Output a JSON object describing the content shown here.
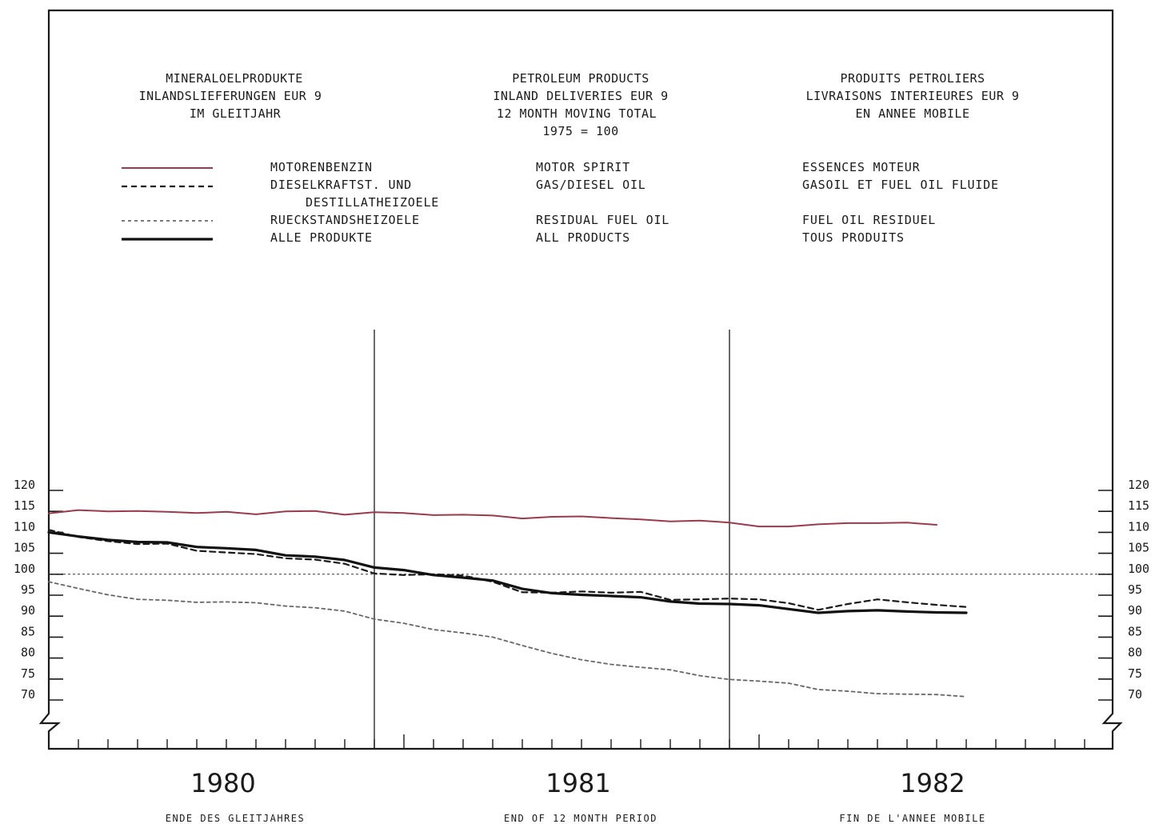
{
  "colors": {
    "frame": "#1a1a1a",
    "motor_spirit": "#9b3a4c",
    "gas_diesel": "#1a1a1a",
    "residual": "#666666",
    "all_products": "#111111",
    "reference": "#333333"
  },
  "headers": [
    [
      "MINERALOELPRODUKTE",
      "INLANDSLIEFERUNGEN  EUR 9",
      "IM GLEITJAHR"
    ],
    [
      "PETROLEUM PRODUCTS",
      "INLAND DELIVERIES  EUR 9",
      "12 MONTH MOVING TOTAL",
      "1975 = 100"
    ],
    [
      "PRODUITS PETROLIERS",
      "LIVRAISONS INTERIEURES  EUR 9",
      "EN ANNEE MOBILE"
    ]
  ],
  "legend": [
    {
      "de": "MOTORENBENZIN",
      "en": "MOTOR SPIRIT",
      "fr": "ESSENCES MOTEUR"
    },
    {
      "de": "DIESELKRAFTST. UND",
      "de2": "DESTILLATHEIZOELE",
      "en": "GAS/DIESEL OIL",
      "fr": "GASOIL ET FUEL OIL FLUIDE"
    },
    {
      "de": "RUECKSTANDSHEIZOELE",
      "en": "RESIDUAL FUEL OIL",
      "fr": "FUEL OIL RESIDUEL"
    },
    {
      "de": "ALLE PRODUKTE",
      "en": "ALL PRODUCTS",
      "fr": "TOUS PRODUITS"
    }
  ],
  "footer": {
    "years": [
      "1980",
      "1981",
      "1982"
    ],
    "labels": [
      "ENDE DES GLEITJAHRES",
      "END OF 12 MONTH PERIOD",
      "FIN DE L'ANNEE MOBILE"
    ]
  },
  "chart_data": {
    "type": "line",
    "x_unit": "month (end of 12 month period)",
    "x": [
      "1980-01",
      "1980-02",
      "1980-03",
      "1980-04",
      "1980-05",
      "1980-06",
      "1980-07",
      "1980-08",
      "1980-09",
      "1980-10",
      "1980-11",
      "1980-12",
      "1981-01",
      "1981-02",
      "1981-03",
      "1981-04",
      "1981-05",
      "1981-06",
      "1981-07",
      "1981-08",
      "1981-09",
      "1981-10",
      "1981-11",
      "1981-12",
      "1982-01",
      "1982-02",
      "1982-03",
      "1982-04",
      "1982-05",
      "1982-06",
      "1982-07",
      "1982-08"
    ],
    "ylim": [
      70,
      120
    ],
    "yticks": [
      70,
      75,
      80,
      85,
      90,
      95,
      100,
      105,
      110,
      115,
      120
    ],
    "reference_line": 100,
    "year_dividers": [
      "1980-12",
      "1981-12"
    ],
    "series": [
      {
        "key": "motor_spirit",
        "style": "solid",
        "values": [
          114.5,
          115.3,
          115.0,
          115.1,
          114.9,
          114.6,
          114.9,
          114.3,
          115.0,
          115.1,
          114.2,
          114.8,
          114.6,
          114.1,
          114.2,
          114.0,
          113.3,
          113.7,
          113.8,
          113.4,
          113.1,
          112.6,
          112.8,
          112.3,
          111.4,
          111.4,
          111.9,
          112.2,
          112.2,
          112.3,
          111.8,
          null
        ]
      },
      {
        "key": "gas_diesel",
        "style": "dashed",
        "values": [
          110.6,
          108.9,
          107.9,
          107.2,
          107.3,
          105.6,
          105.2,
          104.8,
          103.8,
          103.5,
          102.5,
          100.2,
          99.8,
          100.0,
          99.7,
          98.2,
          95.7,
          95.6,
          95.9,
          95.6,
          95.8,
          93.9,
          94.0,
          94.2,
          94.0,
          93.1,
          91.5,
          92.9,
          94.0,
          93.3,
          92.7,
          92.2
        ]
      },
      {
        "key": "residual",
        "style": "dotted",
        "values": [
          98.2,
          96.6,
          95.1,
          94.0,
          93.8,
          93.3,
          93.4,
          93.2,
          92.4,
          92.0,
          91.2,
          89.3,
          88.3,
          86.8,
          86.0,
          85.0,
          83.0,
          81.1,
          79.6,
          78.5,
          77.8,
          77.2,
          75.8,
          74.9,
          74.5,
          74.0,
          72.5,
          72.1,
          71.5,
          71.4,
          71.3,
          70.8
        ]
      },
      {
        "key": "all_products",
        "style": "thick",
        "values": [
          110.0,
          109.0,
          108.2,
          107.7,
          107.6,
          106.5,
          106.2,
          105.8,
          104.5,
          104.2,
          103.4,
          101.6,
          101.0,
          99.8,
          99.2,
          98.5,
          96.5,
          95.5,
          95.1,
          94.8,
          94.5,
          93.5,
          93.0,
          92.9,
          92.6,
          91.7,
          90.8,
          91.2,
          91.4,
          91.1,
          90.9,
          90.8
        ]
      }
    ]
  }
}
